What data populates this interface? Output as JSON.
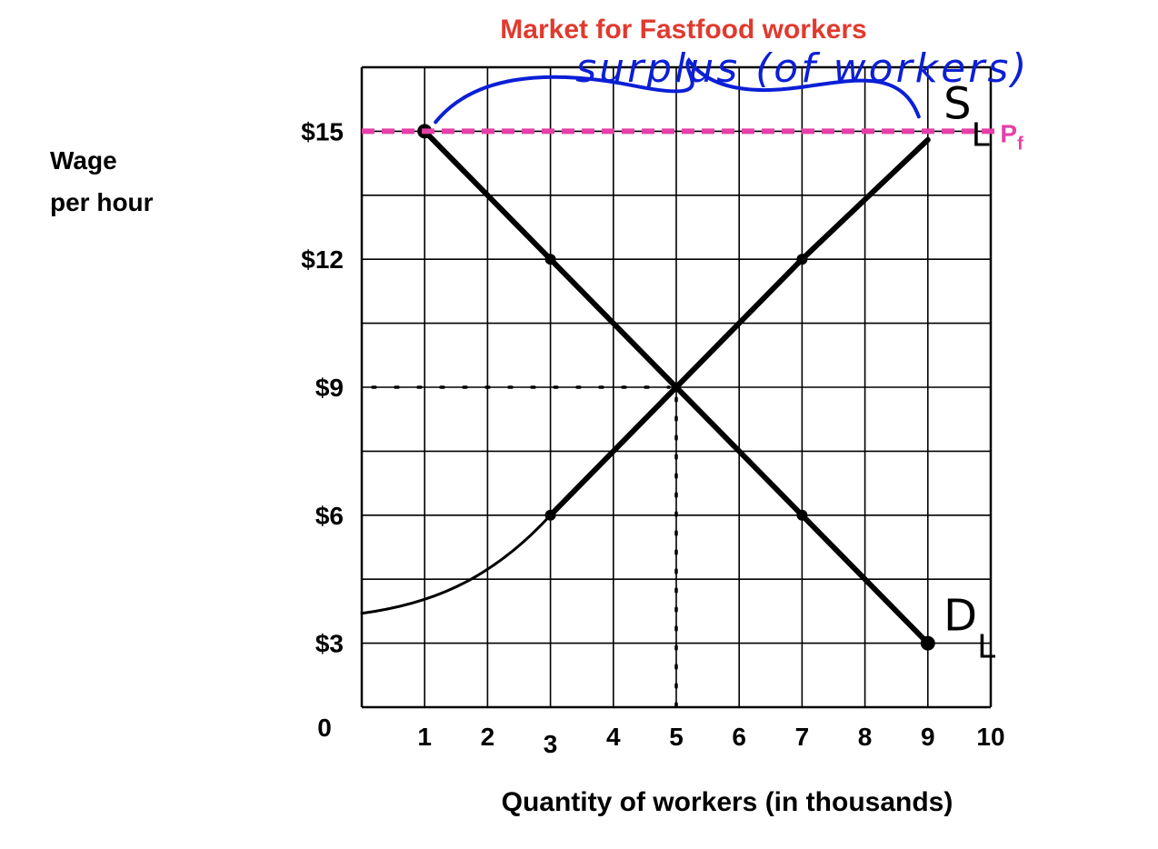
{
  "chart_data": {
    "type": "line",
    "title": "Market for Fastfood workers",
    "ylabel": [
      "Wage",
      "per hour"
    ],
    "xlabel": "Quantity of workers (in thousands)",
    "origin_label": "0",
    "xlim": [
      0,
      10
    ],
    "ylim": [
      1.5,
      16.5
    ],
    "x_ticks": [
      {
        "value": 1,
        "label": "1"
      },
      {
        "value": 2,
        "label": "2"
      },
      {
        "value": 3,
        "label": "3"
      },
      {
        "value": 4,
        "label": "4"
      },
      {
        "value": 5,
        "label": "5"
      },
      {
        "value": 6,
        "label": "6"
      },
      {
        "value": 7,
        "label": "7"
      },
      {
        "value": 8,
        "label": "8"
      },
      {
        "value": 9,
        "label": "9"
      },
      {
        "value": 10,
        "label": "10"
      }
    ],
    "y_ticks": [
      {
        "value": 15,
        "label": "$15"
      },
      {
        "value": 12,
        "label": "$12"
      },
      {
        "value": 9,
        "label": "$9"
      },
      {
        "value": 6,
        "label": "$6"
      },
      {
        "value": 3,
        "label": "$3"
      }
    ],
    "grid": true,
    "series": [
      {
        "name": "S",
        "subscript": "L",
        "points": [
          [
            0,
            3.7
          ],
          [
            1,
            3.9
          ],
          [
            2,
            4.6
          ],
          [
            3,
            6
          ],
          [
            5,
            9
          ],
          [
            7,
            12
          ],
          [
            9,
            14.8
          ]
        ]
      },
      {
        "name": "D",
        "subscript": "L",
        "points": [
          [
            1,
            15
          ],
          [
            3,
            12
          ],
          [
            5,
            9
          ],
          [
            7,
            6
          ],
          [
            9,
            3
          ]
        ]
      }
    ],
    "equilibrium": {
      "x": 5,
      "y": 9
    },
    "price_floor": {
      "value": 15,
      "label": "P",
      "subscript": "f",
      "color": "#e53fa8"
    },
    "annotation": {
      "text": "surplus (of workers)",
      "from_x": 1,
      "to_x": 9,
      "color": "#0b1fd6"
    },
    "colors": {
      "title": "#e03a2f",
      "line": "#000000",
      "grid": "#000000"
    }
  }
}
